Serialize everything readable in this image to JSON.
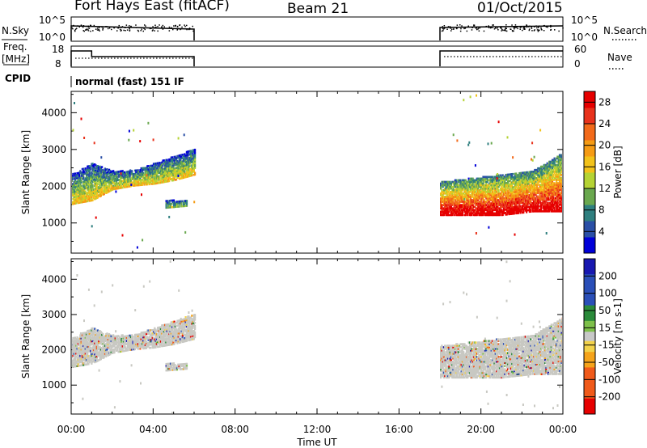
{
  "header": {
    "station": "Fort Hays East (fitACF)",
    "beam": "Beam 21",
    "date": "01/Oct/2015"
  },
  "panels": {
    "nsky_label": "N.Sky",
    "nsearch_label": "N.Search",
    "nsky_ticks": [
      "10^5",
      "10^0"
    ],
    "nsearch_ticks": [
      "10^5",
      "10^0"
    ],
    "freq_label_1": "Freq.",
    "freq_label_2": "[MHz]",
    "freq_ticks": [
      "18",
      "8"
    ],
    "nave_label": "Nave",
    "nave_ticks": [
      "60",
      "0"
    ],
    "cpid_label": "CPID",
    "cpid_text": "normal (fast) 151 IF"
  },
  "colors": {
    "power": [
      "#0000d8",
      "#2a4fa6",
      "#2f7f7f",
      "#6aa84f",
      "#b5d334",
      "#f2c21a",
      "#f59b14",
      "#f26a1a",
      "#e8321c",
      "#e60000"
    ],
    "velocity": [
      "#e60000",
      "#f05a1a",
      "#f5a31a",
      "#f2d24a",
      "#c8c8c8",
      "#7ec04a",
      "#2a8a3a",
      "#2a4fb8",
      "#1818b0"
    ],
    "ground_scatter": "#c8c8c2"
  },
  "chart_data": [
    {
      "type": "heatmap",
      "title": "Power",
      "xlabel": "",
      "ylabel": "Slant Range [km]",
      "x_ticks": [
        "00:00",
        "04:00",
        "08:00",
        "12:00",
        "16:00",
        "20:00",
        "00:00"
      ],
      "x_range_hours": [
        0,
        24
      ],
      "y_ticks": [
        1000,
        2000,
        3000,
        4000
      ],
      "ylim": [
        180,
        4580
      ],
      "colorbar": {
        "label": "Power [dB]",
        "ticks": [
          4,
          8,
          12,
          16,
          20,
          24,
          28
        ],
        "range": [
          0,
          30
        ]
      },
      "echo_bands": [
        {
          "start_h": 0.0,
          "end_h": 6.0,
          "lower_km": [
            1500,
            1600,
            1900,
            2000,
            2050,
            2150,
            2300
          ],
          "upper_km": [
            2300,
            2600,
            2400,
            2400,
            2600,
            2800,
            3000
          ],
          "power_db": 14
        },
        {
          "start_h": 4.6,
          "end_h": 5.6,
          "lower_km": [
            1400,
            1450
          ],
          "upper_km": [
            1600,
            1600
          ],
          "power_db": 10
        },
        {
          "start_h": 18.0,
          "end_h": 24.0,
          "lower_km": [
            1200,
            1200,
            1200,
            1300,
            1300
          ],
          "upper_km": [
            2100,
            2200,
            2300,
            2400,
            2900
          ],
          "power_db": 26
        }
      ]
    },
    {
      "type": "heatmap",
      "title": "Velocity",
      "xlabel": "Time UT",
      "ylabel": "Slant Range [km]",
      "x_ticks": [
        "00:00",
        "04:00",
        "08:00",
        "12:00",
        "16:00",
        "20:00",
        "00:00"
      ],
      "x_range_hours": [
        0,
        24
      ],
      "y_ticks": [
        1000,
        2000,
        3000,
        4000
      ],
      "ylim": [
        180,
        4580
      ],
      "colorbar": {
        "label": "Velocity [m s-1]",
        "ticks": [
          200,
          100,
          50,
          15,
          -15,
          -50,
          -100,
          -200
        ],
        "range": [
          -250,
          250
        ]
      },
      "echo_bands": [
        {
          "start_h": 0.0,
          "end_h": 6.0,
          "lower_km": [
            1500,
            1600,
            1900,
            2000,
            2050,
            2150,
            2300
          ],
          "upper_km": [
            2300,
            2600,
            2400,
            2400,
            2600,
            2800,
            3000
          ],
          "velocity_ms": 0
        },
        {
          "start_h": 4.6,
          "end_h": 5.6,
          "lower_km": [
            1400,
            1450
          ],
          "upper_km": [
            1600,
            1600
          ],
          "velocity_ms": -30
        },
        {
          "start_h": 18.0,
          "end_h": 24.0,
          "lower_km": [
            1200,
            1200,
            1200,
            1300,
            1300
          ],
          "upper_km": [
            2100,
            2200,
            2300,
            2400,
            2900
          ],
          "velocity_ms": 0
        }
      ]
    }
  ]
}
